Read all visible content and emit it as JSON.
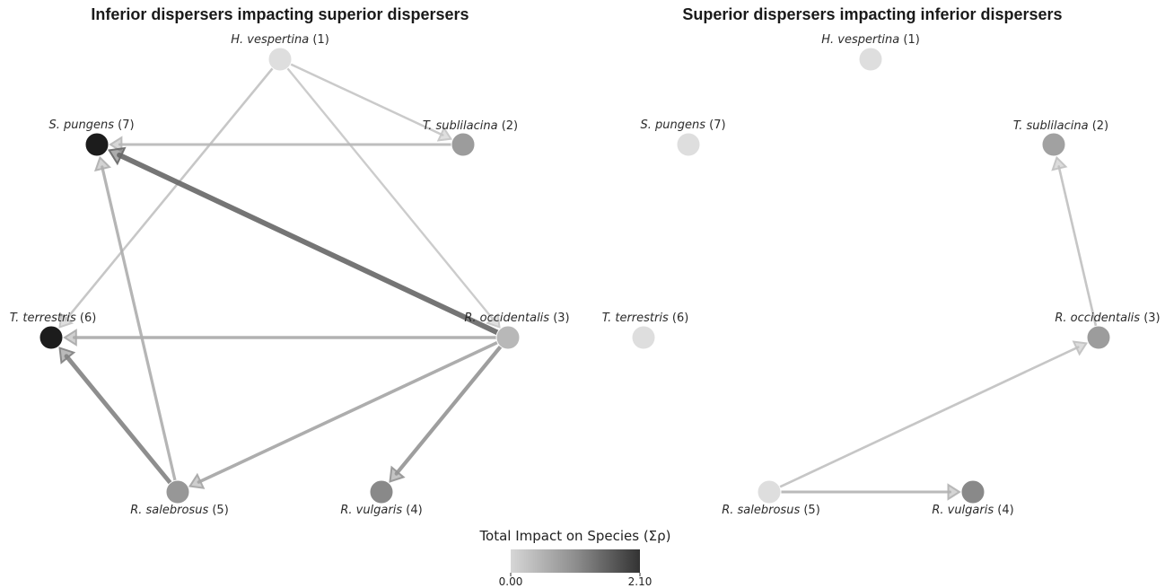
{
  "panels": [
    {
      "title": "Inferior dispersers impacting superior dispersers",
      "nodes": [
        {
          "id": 1,
          "name": "H. vespertina",
          "num": "(1)",
          "impact": 0.05
        },
        {
          "id": 2,
          "name": "T. sublilacina",
          "num": "(2)",
          "impact": 0.75
        },
        {
          "id": 3,
          "name": "R. occidentalis",
          "num": "(3)",
          "impact": 0.45
        },
        {
          "id": 4,
          "name": "R. vulgaris",
          "num": "(4)",
          "impact": 0.95
        },
        {
          "id": 5,
          "name": "R. salebrosus",
          "num": "(5)",
          "impact": 0.8
        },
        {
          "id": 6,
          "name": "T. terrestris",
          "num": "(6)",
          "impact": 2.1
        },
        {
          "id": 7,
          "name": "S. pungens",
          "num": "(7)",
          "impact": 2.1
        }
      ],
      "edges": [
        {
          "from": 1,
          "to": 2,
          "weight": 0.15
        },
        {
          "from": 1,
          "to": 3,
          "weight": 0.12
        },
        {
          "from": 1,
          "to": 6,
          "weight": 0.18
        },
        {
          "from": 2,
          "to": 7,
          "weight": 0.3
        },
        {
          "from": 3,
          "to": 7,
          "weight": 1.2
        },
        {
          "from": 3,
          "to": 6,
          "weight": 0.45
        },
        {
          "from": 3,
          "to": 5,
          "weight": 0.5
        },
        {
          "from": 3,
          "to": 4,
          "weight": 0.7
        },
        {
          "from": 5,
          "to": 6,
          "weight": 0.9
        },
        {
          "from": 5,
          "to": 7,
          "weight": 0.4
        }
      ]
    },
    {
      "title": "Superior dispersers impacting inferior dispersers",
      "nodes": [
        {
          "id": 1,
          "name": "H. vespertina",
          "num": "(1)",
          "impact": 0.05
        },
        {
          "id": 2,
          "name": "T. sublilacina",
          "num": "(2)",
          "impact": 0.7
        },
        {
          "id": 3,
          "name": "R. occidentalis",
          "num": "(3)",
          "impact": 0.75
        },
        {
          "id": 4,
          "name": "R. vulgaris",
          "num": "(4)",
          "impact": 0.95
        },
        {
          "id": 5,
          "name": "R. salebrosus",
          "num": "(5)",
          "impact": 0.05
        },
        {
          "id": 6,
          "name": "T. terrestris",
          "num": "(6)",
          "impact": 0.05
        },
        {
          "id": 7,
          "name": "S. pungens",
          "num": "(7)",
          "impact": 0.05
        }
      ],
      "edges": [
        {
          "from": 5,
          "to": 3,
          "weight": 0.2
        },
        {
          "from": 5,
          "to": 4,
          "weight": 0.35
        },
        {
          "from": 3,
          "to": 2,
          "weight": 0.2
        }
      ]
    }
  ],
  "colorbar": {
    "title": "Total Impact on Species (Σρ)",
    "min_label": "0.00",
    "max_label": "2.10",
    "min": 0.0,
    "max": 2.1,
    "color_low": "#d0d0d0",
    "color_high": "#333333"
  },
  "colors": {
    "node_low": "#e3e3e3",
    "node_high": "#1c1c1c"
  }
}
